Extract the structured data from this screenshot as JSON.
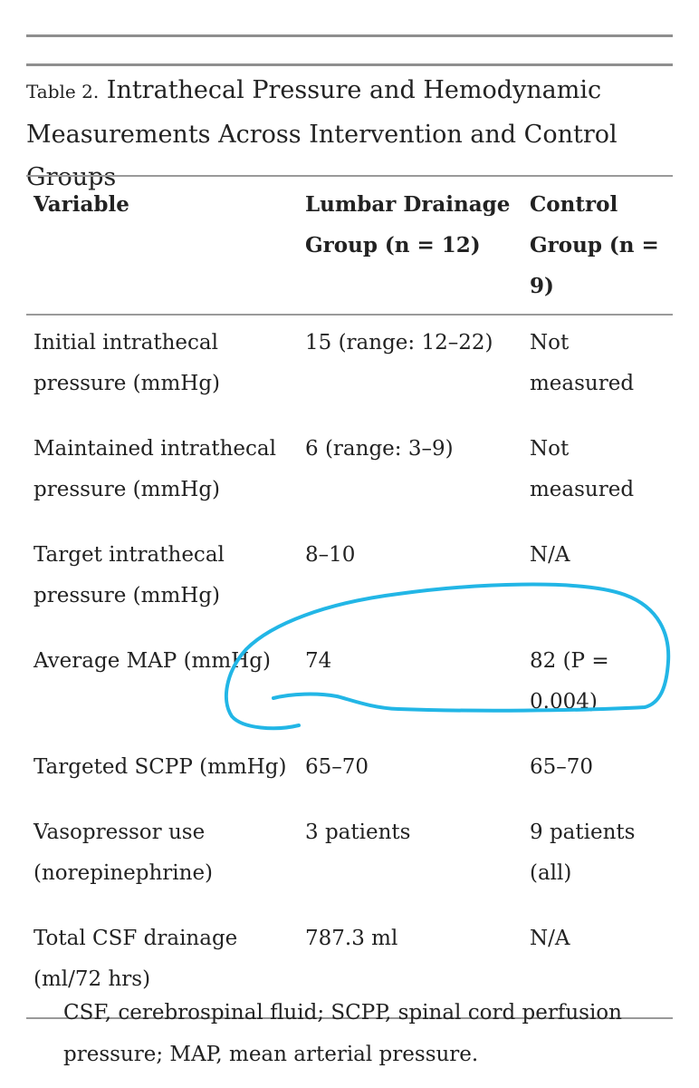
{
  "caption": {
    "label": "Table 2.",
    "title": "Intrathecal Pressure and Hemodynamic Measurements Across Intervention and Control Groups"
  },
  "table": {
    "headers": [
      "Variable",
      "Lumbar Drainage Group (n = 12)",
      "Control Group (n = 9)"
    ],
    "rows": [
      [
        "Initial intrathecal pressure (mmHg)",
        "15 (range: 12–22)",
        "Not measured"
      ],
      [
        "Maintained intrathecal pressure (mmHg)",
        "6 (range: 3–9)",
        "Not measured"
      ],
      [
        "Target intrathecal pressure (mmHg)",
        "8–10",
        "N/A"
      ],
      [
        "Average MAP (mmHg)",
        "74",
        "82 (P = 0.004)"
      ],
      [
        "Targeted SCPP (mmHg)",
        "65–70",
        "65–70"
      ],
      [
        "Vasopressor use (norepinephrine)",
        "3 patients",
        "9 patients (all)"
      ],
      [
        "Total CSF drainage (ml/72 hrs)",
        "787.3 ml",
        "N/A"
      ]
    ]
  },
  "footnote": "CSF, cerebrospinal fluid; SCPP, spinal cord perfusion pressure; MAP, mean arterial pressure.",
  "annotation": {
    "color": "#22b6e6",
    "shape": "hand-drawn loop around Average MAP values"
  }
}
